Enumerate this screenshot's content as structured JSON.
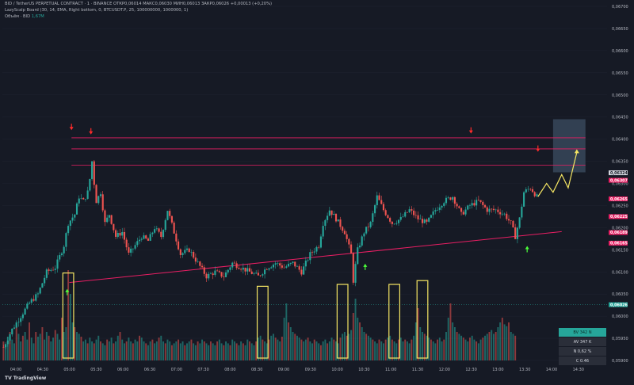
{
  "header": {
    "line1": "BID / TetherUS PERPETUAL CONTRACT · 1 · BINANCE  ОТКР0,06014  МАКС0,06030  МИН0,06013  ЗАКР0,06026  +0,00013 (+0,20%)",
    "line2": "LazyScalp Board (30, 14, EMA, Right bottom, 0, BTCUSDT.P, 25, 100000000, 1000000, 1)",
    "line3_label": "Объём · BID",
    "line3_value": "1,67M"
  },
  "colors": {
    "background": "#161a25",
    "up": "#26a69a",
    "down": "#ef5350",
    "resistance": "#e91e63",
    "support": "#e91e63",
    "highlight_box": "#f5e663",
    "arrow_up": "#4cff3a",
    "arrow_down": "#ff2b2b",
    "projection": "#f5e663",
    "target_box": "#3a4a5e"
  },
  "stats": {
    "items": [
      {
        "text": "BV 342 N",
        "bg": "#26a69a",
        "fg": "#0b2a27"
      },
      {
        "text": "AV 347 K",
        "bg": "#2a2e39",
        "fg": "#d1d4dc"
      },
      {
        "text": "N 0,62 %",
        "bg": "#2a2e39",
        "fg": "#d1d4dc"
      },
      {
        "text": "C 0.46",
        "bg": "#2a2e39",
        "fg": "#d1d4dc"
      }
    ]
  },
  "branding": {
    "logo_text": "TradingView",
    "icon": "tradingview-logo-icon"
  },
  "chart_data": {
    "type": "candlestick",
    "y_axis": {
      "ylim": [
        0.059,
        0.067
      ],
      "tick_labels": [
        "0,06700",
        "0,06650",
        "0,06600",
        "0,06550",
        "0,06500",
        "0,06450",
        "0,06400",
        "0,06350",
        "0,06300",
        "0,06250",
        "0,06200",
        "0,06150",
        "0,06100",
        "0,06050",
        "0,06000",
        "0,05950",
        "0,05900"
      ]
    },
    "x_axis": {
      "tick_labels": [
        "04:00",
        "04:30",
        "05:00",
        "05:30",
        "06:00",
        "06:30",
        "07:00",
        "07:30",
        "08:00",
        "08:30",
        "09:00",
        "09:30",
        "10:00",
        "10:30",
        "11:00",
        "11:30",
        "12:00",
        "12:30",
        "13:00",
        "13:30",
        "14:00",
        "14:30"
      ]
    },
    "price_labels": [
      {
        "text": "0,06324",
        "value": 0.06324,
        "bg": "#d1d4dc",
        "fg": "#161a25"
      },
      {
        "text": "0,06307",
        "value": 0.06307,
        "bg": "#e91e63",
        "fg": "#ffffff"
      },
      {
        "text": "0,06265",
        "value": 0.06265,
        "bg": "#e91e63",
        "fg": "#ffffff"
      },
      {
        "text": "0,06225",
        "value": 0.06225,
        "bg": "#e91e63",
        "fg": "#ffffff"
      },
      {
        "text": "0,06189",
        "value": 0.06189,
        "bg": "#e91e63",
        "fg": "#ffffff"
      },
      {
        "text": "0,06165",
        "value": 0.06165,
        "bg": "#e91e63",
        "fg": "#ffffff"
      },
      {
        "text": "0,06026",
        "value": 0.06026,
        "bg": "#26a69a",
        "fg": "#ffffff"
      }
    ],
    "price_path": [
      [
        0,
        0.0593
      ],
      [
        4,
        0.0597
      ],
      [
        8,
        0.06
      ],
      [
        12,
        0.0603
      ],
      [
        16,
        0.0605
      ],
      [
        20,
        0.061
      ],
      [
        24,
        0.0611
      ],
      [
        28,
        0.0616
      ],
      [
        30,
        0.0621
      ],
      [
        33,
        0.0623
      ],
      [
        35,
        0.0627
      ],
      [
        37,
        0.0626
      ],
      [
        39,
        0.0628
      ],
      [
        40,
        0.0631
      ],
      [
        41,
        0.0635
      ],
      [
        42,
        0.063
      ],
      [
        43,
        0.0626
      ],
      [
        45,
        0.0628
      ],
      [
        47,
        0.0621
      ],
      [
        49,
        0.0623
      ],
      [
        52,
        0.0618
      ],
      [
        55,
        0.0619
      ],
      [
        58,
        0.0614
      ],
      [
        61,
        0.0616
      ],
      [
        64,
        0.0618
      ],
      [
        67,
        0.0617
      ],
      [
        70,
        0.062
      ],
      [
        73,
        0.0618
      ],
      [
        76,
        0.0624
      ],
      [
        79,
        0.0619
      ],
      [
        82,
        0.0614
      ],
      [
        86,
        0.0615
      ],
      [
        90,
        0.0612
      ],
      [
        94,
        0.0609
      ],
      [
        98,
        0.061
      ],
      [
        102,
        0.0609
      ],
      [
        106,
        0.0612
      ],
      [
        110,
        0.0611
      ],
      [
        114,
        0.061
      ],
      [
        118,
        0.0609
      ],
      [
        122,
        0.0611
      ],
      [
        126,
        0.0612
      ],
      [
        130,
        0.0611
      ],
      [
        134,
        0.0612
      ],
      [
        138,
        0.061
      ],
      [
        142,
        0.0614
      ],
      [
        146,
        0.0616
      ],
      [
        148,
        0.0621
      ],
      [
        151,
        0.0624
      ],
      [
        154,
        0.0622
      ],
      [
        158,
        0.0619
      ],
      [
        161,
        0.0614
      ],
      [
        162,
        0.0608
      ],
      [
        164,
        0.0615
      ],
      [
        167,
        0.0619
      ],
      [
        170,
        0.0621
      ],
      [
        173,
        0.0627
      ],
      [
        176,
        0.0624
      ],
      [
        180,
        0.0621
      ],
      [
        184,
        0.0622
      ],
      [
        188,
        0.0624
      ],
      [
        192,
        0.0622
      ],
      [
        196,
        0.0621
      ],
      [
        200,
        0.0624
      ],
      [
        204,
        0.0626
      ],
      [
        208,
        0.0627
      ],
      [
        212,
        0.0623
      ],
      [
        216,
        0.0625
      ],
      [
        220,
        0.0626
      ],
      [
        224,
        0.0624
      ],
      [
        228,
        0.0624
      ],
      [
        232,
        0.0623
      ],
      [
        235,
        0.0621
      ],
      [
        237,
        0.0618
      ],
      [
        239,
        0.0622
      ],
      [
        241,
        0.0628
      ],
      [
        244,
        0.0629
      ],
      [
        247,
        0.0627
      ]
    ],
    "projection_path": [
      [
        248,
        0.0627
      ],
      [
        252,
        0.063
      ],
      [
        255,
        0.0628
      ],
      [
        259,
        0.0632
      ],
      [
        262,
        0.0629
      ],
      [
        266,
        0.0637
      ]
    ],
    "target_zone": {
      "x0": 255,
      "x1": 270,
      "y0": 0.06325,
      "y1": 0.06445
    },
    "resistance_lines": [
      {
        "x0": 32,
        "x1": 270,
        "value": 0.06403
      },
      {
        "x0": 32,
        "x1": 270,
        "value": 0.06378
      },
      {
        "x0": 32,
        "x1": 270,
        "value": 0.06341
      }
    ],
    "support_line": {
      "x0": 31,
      "y0": 0.06076,
      "x1": 259,
      "y1": 0.06191
    },
    "down_arrows": [
      [
        32,
        0.06424
      ],
      [
        41,
        0.06414
      ],
      [
        217,
        0.06416
      ],
      [
        248,
        0.06375
      ]
    ],
    "up_arrows": [
      [
        30,
        0.06058
      ],
      [
        168,
        0.06115
      ],
      [
        243,
        0.06155
      ]
    ],
    "volume": {
      "values": [
        0.2,
        0.15,
        0.25,
        0.3,
        0.22,
        0.18,
        0.35,
        0.28,
        0.2,
        0.26,
        0.3,
        0.22,
        0.4,
        0.24,
        0.18,
        0.3,
        0.25,
        0.28,
        0.35,
        0.22,
        0.3,
        0.26,
        0.2,
        0.24,
        0.32,
        0.28,
        0.22,
        0.45,
        0.3,
        0.35,
        0.95,
        0.7,
        0.4,
        0.35,
        0.3,
        0.28,
        0.25,
        0.2,
        0.22,
        0.18,
        0.24,
        0.2,
        0.18,
        0.22,
        0.26,
        0.2,
        0.18,
        0.16,
        0.22,
        0.2,
        0.24,
        0.18,
        0.2,
        0.26,
        0.3,
        0.22,
        0.18,
        0.2,
        0.24,
        0.2,
        0.18,
        0.22,
        0.2,
        0.26,
        0.24,
        0.2,
        0.18,
        0.16,
        0.2,
        0.22,
        0.18,
        0.2,
        0.24,
        0.26,
        0.2,
        0.18,
        0.22,
        0.2,
        0.16,
        0.18,
        0.2,
        0.22,
        0.18,
        0.2,
        0.16,
        0.18,
        0.2,
        0.22,
        0.18,
        0.16,
        0.2,
        0.18,
        0.22,
        0.2,
        0.18,
        0.16,
        0.2,
        0.18,
        0.16,
        0.2,
        0.22,
        0.18,
        0.16,
        0.2,
        0.18,
        0.16,
        0.22,
        0.2,
        0.18,
        0.16,
        0.2,
        0.18,
        0.16,
        0.22,
        0.2,
        0.18,
        0.16,
        0.2,
        0.24,
        0.26,
        0.22,
        0.2,
        0.18,
        0.22,
        0.26,
        0.28,
        0.24,
        0.22,
        0.2,
        0.25,
        0.45,
        0.6,
        0.4,
        0.35,
        0.3,
        0.28,
        0.26,
        0.24,
        0.22,
        0.2,
        0.22,
        0.24,
        0.2,
        0.18,
        0.22,
        0.2,
        0.18,
        0.16,
        0.2,
        0.22,
        0.18,
        0.2,
        0.24,
        0.22,
        0.2,
        0.18,
        0.24,
        0.28,
        0.3,
        0.26,
        0.28,
        0.32,
        0.5,
        0.65,
        0.45,
        0.4,
        0.35,
        0.3,
        0.28,
        0.26,
        0.24,
        0.22,
        0.2,
        0.18,
        0.22,
        0.2,
        0.18,
        0.22,
        0.24,
        0.26,
        0.22,
        0.2,
        0.18,
        0.22,
        0.24,
        0.2,
        0.22,
        0.2,
        0.18,
        0.22,
        0.26,
        0.4,
        0.55,
        0.35,
        0.3,
        0.28,
        0.26,
        0.24,
        0.22,
        0.2,
        0.18,
        0.22,
        0.24,
        0.2,
        0.22,
        0.3,
        0.45,
        0.6,
        0.4,
        0.35,
        0.3,
        0.28,
        0.26,
        0.24,
        0.22,
        0.2,
        0.24,
        0.26,
        0.22,
        0.2,
        0.18,
        0.22,
        0.24,
        0.26,
        0.28,
        0.3,
        0.32,
        0.28,
        0.3,
        0.35,
        0.4,
        0.45,
        0.38,
        0.36,
        0.4,
        0.3,
        0.28,
        0.26
      ],
      "highlight_boxes": [
        {
          "x0": 28,
          "x1": 33,
          "top": 0.92
        },
        {
          "x0": 118,
          "x1": 123,
          "top": 0.78
        },
        {
          "x0": 155,
          "x1": 160,
          "top": 0.8
        },
        {
          "x0": 179,
          "x1": 184,
          "top": 0.8
        },
        {
          "x0": 192,
          "x1": 197,
          "top": 0.84
        }
      ]
    }
  }
}
